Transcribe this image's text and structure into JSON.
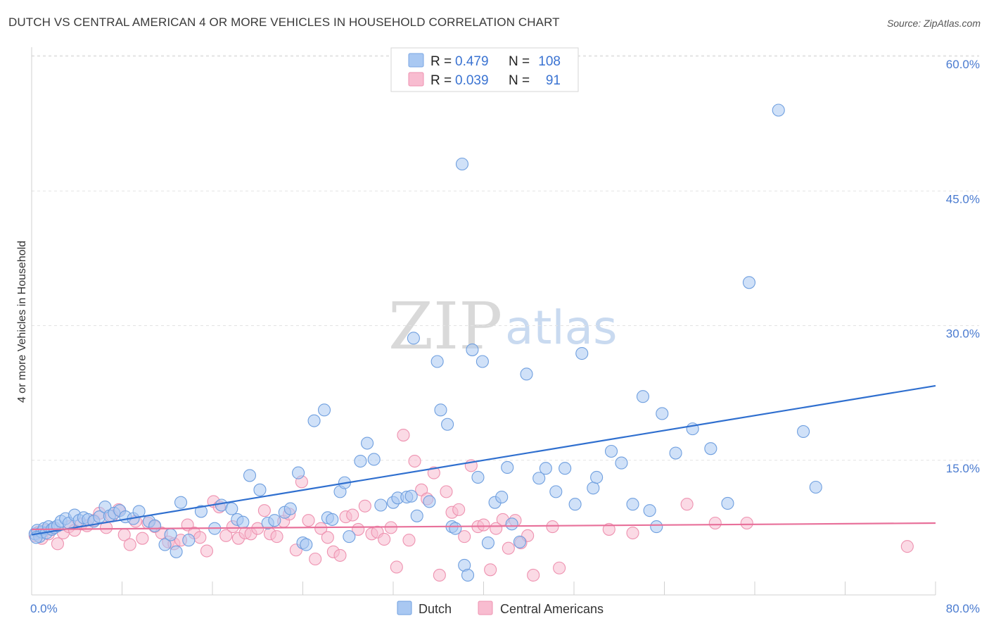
{
  "title": "DUTCH VS CENTRAL AMERICAN 4 OR MORE VEHICLES IN HOUSEHOLD CORRELATION CHART",
  "source": "Source: ZipAtlas.com",
  "watermark": {
    "zip": "ZIP",
    "atlas": "atlas"
  },
  "legend": {
    "rows": [
      {
        "r_label": "R =",
        "r_value": "0.479",
        "n_label": "N =",
        "n_value": "108",
        "color": "#a9c8f2",
        "stroke": "#7aa6e3"
      },
      {
        "r_label": "R =",
        "r_value": "0.039",
        "n_label": "N =",
        "n_value": "91",
        "color": "#f8bcd0",
        "stroke": "#ee92b0"
      }
    ]
  },
  "chart_data": {
    "type": "scatter",
    "title": "DUTCH VS CENTRAL AMERICAN 4 OR MORE VEHICLES IN HOUSEHOLD CORRELATION CHART",
    "xlabel": "",
    "ylabel": "4 or more Vehicles in Household",
    "xlim": [
      0,
      80
    ],
    "ylim": [
      0,
      60
    ],
    "x_tick_labels": [
      "0.0%",
      "80.0%"
    ],
    "y_ticks": [
      15,
      30,
      45,
      60
    ],
    "y_tick_labels": [
      "15.0%",
      "30.0%",
      "45.0%",
      "60.0%"
    ],
    "grid": true,
    "legend_position": "top-center",
    "series": [
      {
        "name": "Dutch",
        "color": "#a9c8f2",
        "stroke": "#6f9fdf",
        "trend_color": "#2f6fcf",
        "trend": {
          "x": [
            0,
            80
          ],
          "y": [
            6.7,
            23.3
          ]
        },
        "points": [
          [
            0.3,
            6.8
          ],
          [
            0.5,
            7.2
          ],
          [
            0.7,
            6.5
          ],
          [
            0.9,
            7.0
          ],
          [
            1.1,
            7.4
          ],
          [
            1.3,
            6.9
          ],
          [
            1.5,
            7.6
          ],
          [
            1.8,
            7.3
          ],
          [
            2.0,
            7.5
          ],
          [
            2.3,
            7.7
          ],
          [
            2.6,
            8.2
          ],
          [
            3.0,
            8.5
          ],
          [
            3.3,
            8.0
          ],
          [
            3.8,
            8.9
          ],
          [
            4.2,
            8.3
          ],
          [
            4.6,
            8.6
          ],
          [
            5.0,
            8.4
          ],
          [
            5.5,
            8.2
          ],
          [
            6.0,
            8.7
          ],
          [
            6.5,
            9.8
          ],
          [
            6.9,
            8.8
          ],
          [
            7.3,
            9.1
          ],
          [
            7.8,
            9.4
          ],
          [
            8.3,
            8.7
          ],
          [
            9.0,
            8.5
          ],
          [
            9.5,
            9.3
          ],
          [
            10.4,
            8.2
          ],
          [
            10.9,
            7.7
          ],
          [
            11.8,
            5.6
          ],
          [
            12.3,
            6.7
          ],
          [
            12.8,
            4.8
          ],
          [
            13.9,
            6.1
          ],
          [
            13.2,
            10.3
          ],
          [
            15.0,
            9.3
          ],
          [
            16.2,
            7.4
          ],
          [
            16.8,
            10.0
          ],
          [
            17.7,
            9.6
          ],
          [
            18.2,
            8.4
          ],
          [
            18.7,
            8.1
          ],
          [
            19.3,
            13.3
          ],
          [
            20.2,
            11.7
          ],
          [
            20.9,
            8.0
          ],
          [
            21.5,
            8.3
          ],
          [
            22.4,
            9.2
          ],
          [
            22.9,
            9.6
          ],
          [
            23.6,
            13.6
          ],
          [
            24.0,
            5.8
          ],
          [
            24.3,
            5.6
          ],
          [
            25.0,
            19.4
          ],
          [
            25.9,
            20.6
          ],
          [
            26.2,
            8.6
          ],
          [
            26.6,
            8.4
          ],
          [
            27.3,
            11.5
          ],
          [
            27.7,
            12.5
          ],
          [
            28.1,
            6.5
          ],
          [
            29.1,
            14.9
          ],
          [
            29.7,
            16.9
          ],
          [
            30.3,
            15.1
          ],
          [
            30.9,
            10.0
          ],
          [
            32.0,
            10.3
          ],
          [
            32.4,
            10.8
          ],
          [
            33.2,
            10.9
          ],
          [
            34.1,
            8.8
          ],
          [
            33.6,
            11.0
          ],
          [
            33.8,
            28.6
          ],
          [
            35.2,
            10.4
          ],
          [
            35.9,
            26.0
          ],
          [
            36.2,
            20.6
          ],
          [
            36.8,
            19.0
          ],
          [
            37.2,
            7.6
          ],
          [
            37.5,
            7.4
          ],
          [
            38.3,
            3.3
          ],
          [
            38.6,
            2.2
          ],
          [
            38.1,
            48.0
          ],
          [
            39.0,
            27.3
          ],
          [
            39.5,
            13.1
          ],
          [
            39.9,
            26.0
          ],
          [
            40.4,
            5.8
          ],
          [
            41.0,
            10.3
          ],
          [
            41.6,
            10.9
          ],
          [
            42.1,
            14.2
          ],
          [
            42.5,
            7.9
          ],
          [
            43.2,
            5.9
          ],
          [
            43.8,
            24.6
          ],
          [
            44.9,
            13.0
          ],
          [
            45.5,
            14.1
          ],
          [
            46.4,
            11.5
          ],
          [
            47.2,
            14.1
          ],
          [
            48.1,
            10.1
          ],
          [
            48.7,
            26.9
          ],
          [
            49.7,
            11.9
          ],
          [
            50.0,
            13.1
          ],
          [
            51.3,
            16.0
          ],
          [
            52.2,
            14.7
          ],
          [
            53.2,
            10.1
          ],
          [
            54.1,
            22.1
          ],
          [
            54.7,
            9.4
          ],
          [
            55.3,
            7.6
          ],
          [
            55.8,
            20.2
          ],
          [
            57.0,
            15.8
          ],
          [
            58.5,
            18.5
          ],
          [
            60.1,
            16.3
          ],
          [
            61.6,
            10.2
          ],
          [
            63.5,
            34.8
          ],
          [
            66.1,
            54.0
          ],
          [
            68.3,
            18.2
          ],
          [
            69.4,
            12.0
          ],
          [
            0.4,
            6.4
          ]
        ]
      },
      {
        "name": "Central Americans",
        "color": "#f8bcd0",
        "stroke": "#ee92b0",
        "trend_color": "#e8709a",
        "trend": {
          "x": [
            0,
            80
          ],
          "y": [
            7.3,
            8.0
          ]
        },
        "points": [
          [
            0.3,
            6.6
          ],
          [
            0.6,
            7.0
          ],
          [
            0.9,
            6.3
          ],
          [
            1.2,
            7.2
          ],
          [
            1.5,
            6.8
          ],
          [
            1.9,
            7.4
          ],
          [
            2.3,
            5.7
          ],
          [
            2.8,
            6.9
          ],
          [
            3.3,
            7.6
          ],
          [
            3.8,
            7.2
          ],
          [
            4.4,
            7.9
          ],
          [
            4.9,
            7.7
          ],
          [
            5.5,
            8.3
          ],
          [
            6.0,
            9.1
          ],
          [
            6.6,
            7.5
          ],
          [
            7.1,
            8.8
          ],
          [
            7.7,
            9.5
          ],
          [
            8.2,
            6.7
          ],
          [
            8.7,
            5.6
          ],
          [
            9.2,
            8.2
          ],
          [
            9.8,
            6.3
          ],
          [
            10.3,
            8.0
          ],
          [
            10.9,
            7.6
          ],
          [
            11.5,
            6.9
          ],
          [
            12.1,
            5.9
          ],
          [
            12.6,
            5.7
          ],
          [
            13.2,
            6.1
          ],
          [
            13.8,
            7.8
          ],
          [
            14.4,
            6.9
          ],
          [
            14.9,
            6.4
          ],
          [
            15.5,
            4.9
          ],
          [
            16.1,
            10.4
          ],
          [
            16.6,
            9.8
          ],
          [
            17.2,
            6.6
          ],
          [
            17.8,
            7.6
          ],
          [
            18.3,
            6.3
          ],
          [
            18.9,
            6.9
          ],
          [
            19.4,
            6.8
          ],
          [
            20.0,
            7.4
          ],
          [
            20.6,
            9.4
          ],
          [
            21.1,
            6.8
          ],
          [
            21.7,
            6.5
          ],
          [
            22.3,
            8.2
          ],
          [
            22.8,
            9.0
          ],
          [
            23.4,
            5.0
          ],
          [
            23.9,
            12.6
          ],
          [
            24.5,
            8.3
          ],
          [
            25.1,
            4.0
          ],
          [
            25.6,
            7.4
          ],
          [
            26.2,
            6.4
          ],
          [
            26.7,
            4.8
          ],
          [
            27.3,
            4.4
          ],
          [
            27.8,
            8.7
          ],
          [
            28.4,
            8.9
          ],
          [
            28.9,
            7.3
          ],
          [
            29.5,
            9.9
          ],
          [
            30.1,
            6.8
          ],
          [
            30.6,
            7.0
          ],
          [
            31.2,
            6.2
          ],
          [
            31.8,
            7.5
          ],
          [
            32.3,
            3.1
          ],
          [
            32.9,
            17.8
          ],
          [
            33.4,
            6.1
          ],
          [
            33.9,
            14.9
          ],
          [
            34.5,
            11.7
          ],
          [
            35.0,
            10.7
          ],
          [
            35.6,
            13.6
          ],
          [
            36.1,
            2.2
          ],
          [
            36.7,
            11.5
          ],
          [
            37.2,
            9.2
          ],
          [
            37.8,
            9.5
          ],
          [
            38.3,
            6.5
          ],
          [
            38.9,
            14.4
          ],
          [
            39.5,
            7.6
          ],
          [
            40.0,
            7.8
          ],
          [
            40.6,
            2.8
          ],
          [
            41.1,
            7.4
          ],
          [
            41.7,
            8.4
          ],
          [
            42.2,
            5.2
          ],
          [
            42.8,
            8.3
          ],
          [
            43.3,
            5.8
          ],
          [
            43.9,
            6.6
          ],
          [
            44.4,
            2.2
          ],
          [
            46.1,
            7.6
          ],
          [
            46.7,
            3.0
          ],
          [
            51.1,
            7.3
          ],
          [
            53.2,
            6.9
          ],
          [
            58.0,
            10.1
          ],
          [
            60.5,
            8.0
          ],
          [
            63.3,
            8.0
          ],
          [
            77.5,
            5.4
          ]
        ]
      }
    ]
  },
  "colors": {
    "grid": "#e3e3e3",
    "axis": "#d0d0d0"
  }
}
